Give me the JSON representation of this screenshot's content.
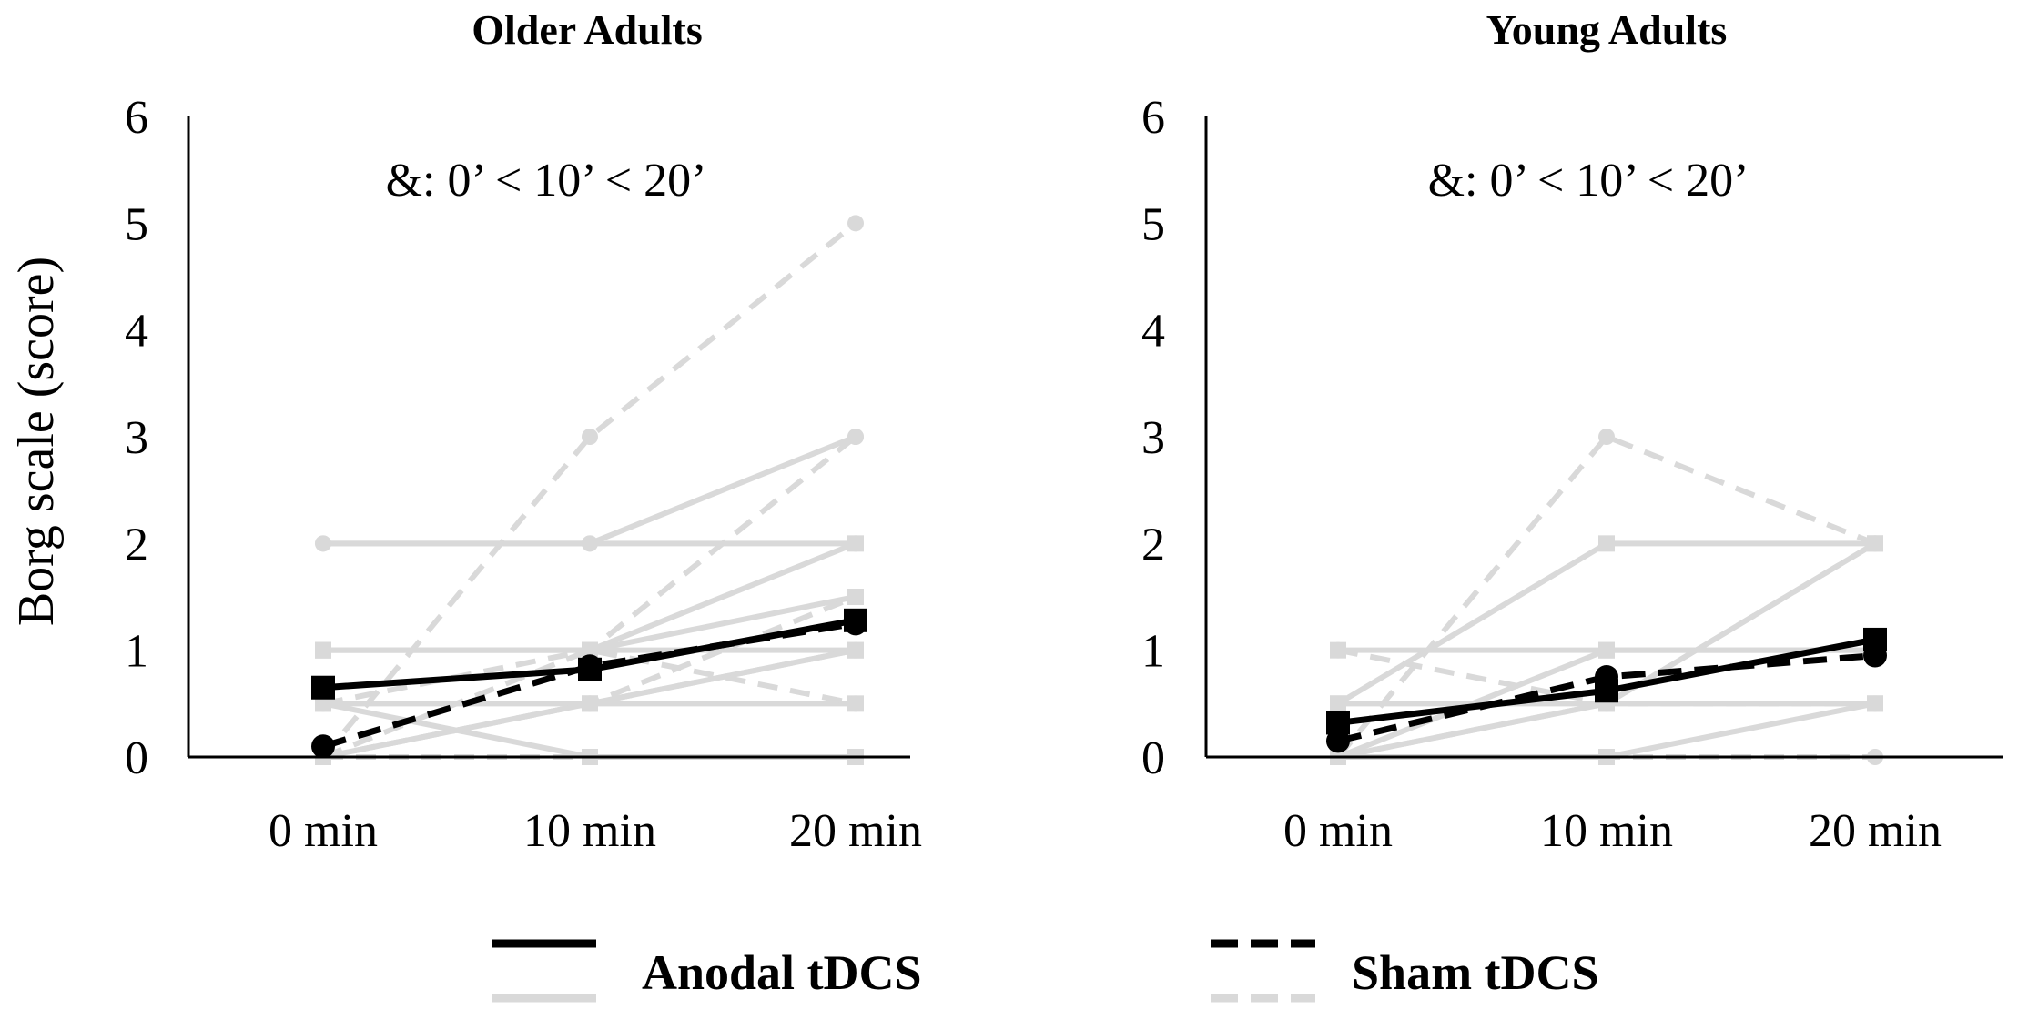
{
  "legend": {
    "items": [
      {
        "label": "Anodal tDCS",
        "mean_color": "#000000",
        "individual_color": "#d9d9d9",
        "style": "solid"
      },
      {
        "label": "Sham tDCS",
        "mean_color": "#000000",
        "individual_color": "#d9d9d9",
        "style": "dashed"
      }
    ]
  },
  "colors": {
    "mean": "#000000",
    "individual": "#d9d9d9"
  },
  "chart_data": [
    {
      "type": "line",
      "title": "Older Adults",
      "ylabel": "Borg scale (score)",
      "xlabel": "",
      "categories": [
        "0 min",
        "10 min",
        "20 min"
      ],
      "yticks": [
        "0",
        "1",
        "2",
        "3",
        "4",
        "5",
        "6"
      ],
      "ylim": [
        0,
        6
      ],
      "annotation": "&: 0’ < 10’ < 20’",
      "series": [
        {
          "name": "Anodal tDCS mean",
          "group": "mean",
          "style": "solid",
          "marker": "square",
          "values": [
            0.65,
            0.82,
            1.28
          ]
        },
        {
          "name": "Sham tDCS mean",
          "group": "mean",
          "style": "dashed",
          "marker": "circle",
          "values": [
            0.1,
            0.85,
            1.25
          ]
        },
        {
          "name": "Anodal individual 1",
          "group": "individual",
          "style": "solid",
          "marker": "circle",
          "values": [
            2,
            2,
            3
          ]
        },
        {
          "name": "Anodal individual 2",
          "group": "individual",
          "style": "solid",
          "marker": "circle",
          "values": [
            2,
            2,
            2
          ]
        },
        {
          "name": "Anodal individual 3",
          "group": "individual",
          "style": "solid",
          "marker": "square",
          "values": [
            1,
            1,
            2
          ]
        },
        {
          "name": "Anodal individual 4",
          "group": "individual",
          "style": "solid",
          "marker": "square",
          "values": [
            1,
            1,
            1.5
          ]
        },
        {
          "name": "Anodal individual 5",
          "group": "individual",
          "style": "solid",
          "marker": "square",
          "values": [
            1,
            1,
            1
          ]
        },
        {
          "name": "Anodal individual 6",
          "group": "individual",
          "style": "solid",
          "marker": "square",
          "values": [
            0.5,
            0.5,
            0.5
          ]
        },
        {
          "name": "Anodal individual 7",
          "group": "individual",
          "style": "solid",
          "marker": "square",
          "values": [
            0.5,
            0,
            0
          ]
        },
        {
          "name": "Anodal individual 8",
          "group": "individual",
          "style": "solid",
          "marker": "square",
          "values": [
            0,
            0.5,
            1
          ]
        },
        {
          "name": "Sham individual 1",
          "group": "individual",
          "style": "dashed",
          "marker": "circle",
          "values": [
            0,
            3,
            5
          ]
        },
        {
          "name": "Sham individual 2",
          "group": "individual",
          "style": "dashed",
          "marker": "circle",
          "values": [
            0.5,
            1,
            3
          ]
        },
        {
          "name": "Sham individual 3",
          "group": "individual",
          "style": "dashed",
          "marker": "circle",
          "values": [
            0,
            0.5,
            1.5
          ]
        },
        {
          "name": "Sham individual 4",
          "group": "individual",
          "style": "dashed",
          "marker": "circle",
          "values": [
            0,
            1,
            0.5
          ]
        },
        {
          "name": "Sham individual 5",
          "group": "individual",
          "style": "dashed",
          "marker": "circle",
          "values": [
            0,
            0.5,
            1
          ]
        },
        {
          "name": "Sham individual 6",
          "group": "individual",
          "style": "dashed",
          "marker": "circle",
          "values": [
            0,
            0,
            0
          ]
        }
      ]
    },
    {
      "type": "line",
      "title": "Young Adults",
      "ylabel": "",
      "xlabel": "",
      "categories": [
        "0 min",
        "10 min",
        "20 min"
      ],
      "yticks": [
        "0",
        "1",
        "2",
        "3",
        "4",
        "5",
        "6"
      ],
      "ylim": [
        0,
        6
      ],
      "annotation": "&: 0’ < 10’ < 20’",
      "series": [
        {
          "name": "Anodal tDCS mean",
          "group": "mean",
          "style": "solid",
          "marker": "square",
          "values": [
            0.32,
            0.62,
            1.1
          ]
        },
        {
          "name": "Sham tDCS mean",
          "group": "mean",
          "style": "dashed",
          "marker": "circle",
          "values": [
            0.15,
            0.75,
            0.95
          ]
        },
        {
          "name": "Anodal individual 1",
          "group": "individual",
          "style": "solid",
          "marker": "square",
          "values": [
            1,
            1,
            1
          ]
        },
        {
          "name": "Anodal individual 2",
          "group": "individual",
          "style": "solid",
          "marker": "square",
          "values": [
            0.5,
            2,
            2
          ]
        },
        {
          "name": "Anodal individual 3",
          "group": "individual",
          "style": "solid",
          "marker": "square",
          "values": [
            0.5,
            0.5,
            0.5
          ]
        },
        {
          "name": "Anodal individual 4",
          "group": "individual",
          "style": "solid",
          "marker": "square",
          "values": [
            0,
            0.5,
            2
          ]
        },
        {
          "name": "Anodal individual 5",
          "group": "individual",
          "style": "solid",
          "marker": "square",
          "values": [
            0,
            0,
            0.5
          ]
        },
        {
          "name": "Anodal individual 6",
          "group": "individual",
          "style": "solid",
          "marker": "square",
          "values": [
            0,
            1,
            1
          ]
        },
        {
          "name": "Sham individual 1",
          "group": "individual",
          "style": "dashed",
          "marker": "circle",
          "values": [
            0,
            3,
            2
          ]
        },
        {
          "name": "Sham individual 2",
          "group": "individual",
          "style": "dashed",
          "marker": "circle",
          "values": [
            1,
            0.5,
            2
          ]
        },
        {
          "name": "Sham individual 3",
          "group": "individual",
          "style": "dashed",
          "marker": "circle",
          "values": [
            0,
            0.5,
            0.5
          ]
        },
        {
          "name": "Sham individual 4",
          "group": "individual",
          "style": "dashed",
          "marker": "circle",
          "values": [
            0,
            0,
            0
          ]
        }
      ]
    }
  ]
}
